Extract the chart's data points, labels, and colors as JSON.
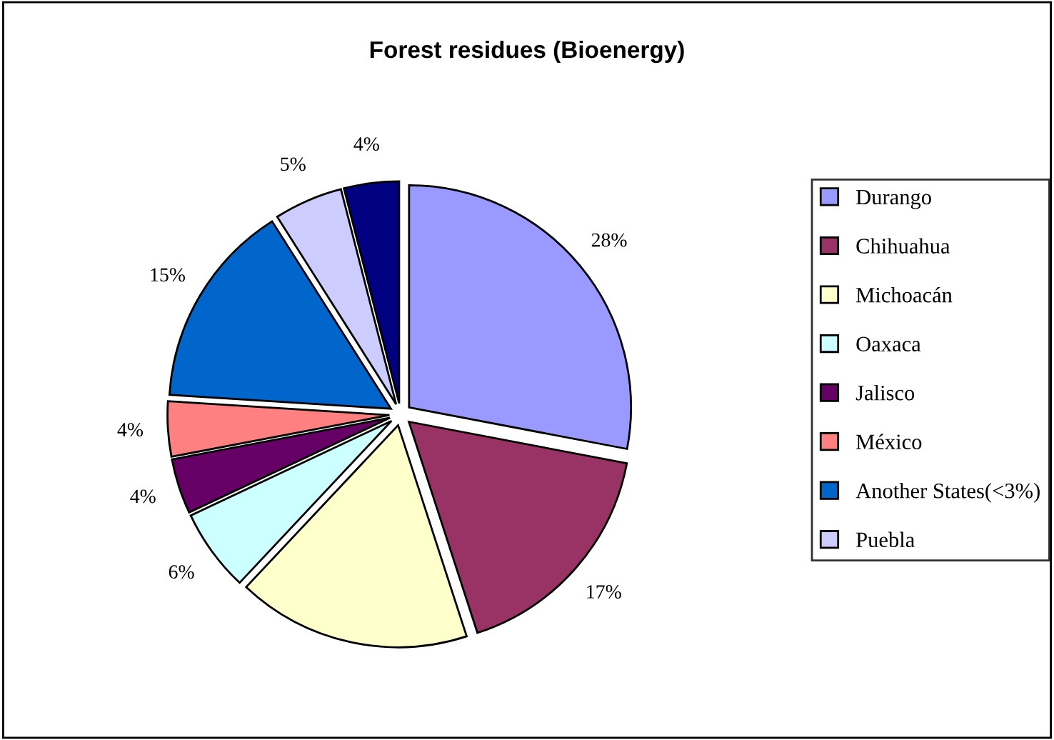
{
  "chart_data": {
    "type": "pie",
    "title": "Forest residues (Bioenergy)",
    "categories": [
      "Durango",
      "Chihuahua",
      "Michoacán",
      "Oaxaca",
      "Jalisco",
      "México",
      "Another States(<3%)",
      "Puebla",
      null
    ],
    "values": [
      28,
      17,
      17,
      6,
      4,
      4,
      15,
      5,
      4
    ],
    "value_labels": [
      "28%",
      "17%",
      null,
      "6%",
      "4%",
      "4%",
      "15%",
      "5%",
      "4%"
    ],
    "colors": [
      "#9999ff",
      "#993366",
      "#ffffcc",
      "#ccffff",
      "#660066",
      "#ff8080",
      "#0066cc",
      "#ccccff",
      "#000080"
    ],
    "legend": "right"
  }
}
